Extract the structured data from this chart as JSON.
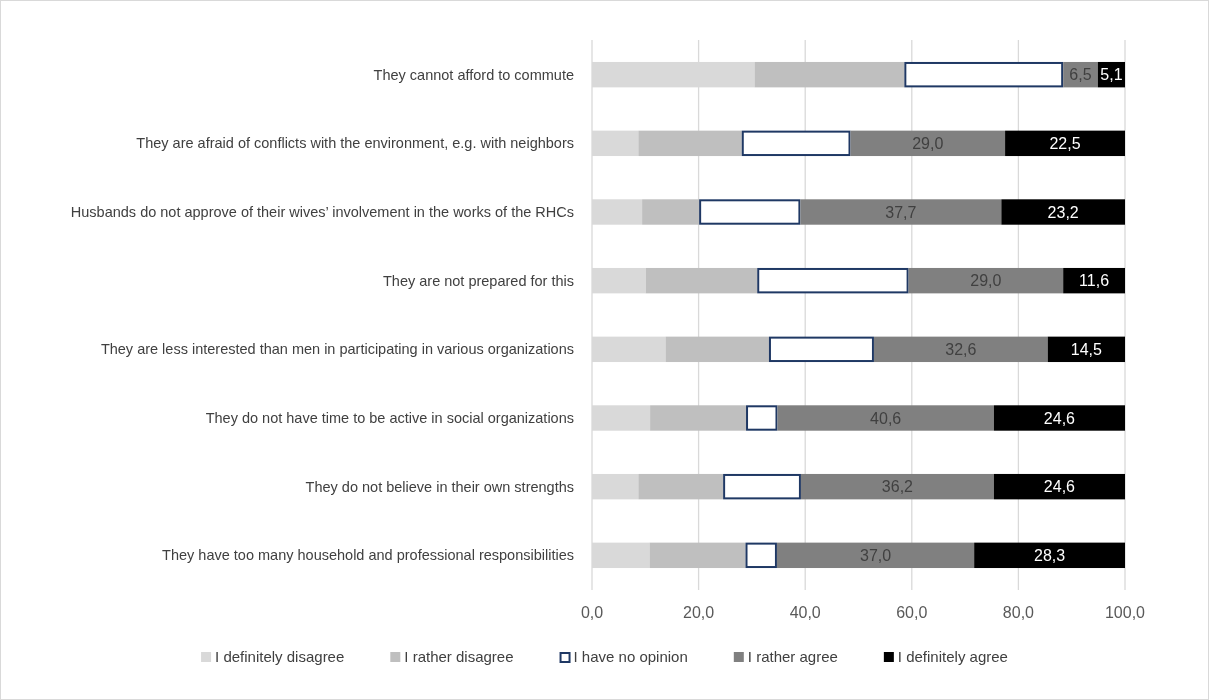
{
  "chart_data": {
    "type": "bar",
    "orientation": "horizontal",
    "stacked": true,
    "categories": [
      "They cannot afford to commute",
      "They are afraid of conflicts with the environment, e.g. with neighbors",
      "Husbands do not approve of their wives’ involvement in the works of the RHCs",
      "They are not prepared for this",
      "They are less interested than men in participating in various organizations",
      "They do not have time to be active in social organizations",
      "They do not believe in their own strengths",
      "They have too many household and professional responsibilities"
    ],
    "series": [
      {
        "name": "I definitely disagree",
        "color": "#d9d9d9",
        "values": [
          30.5,
          8.7,
          9.4,
          10.1,
          13.8,
          10.9,
          8.7,
          10.8
        ]
      },
      {
        "name": "I rather disagree",
        "color": "#bfbfbf",
        "values": [
          28.1,
          19.4,
          10.7,
          20.9,
          19.4,
          18.0,
          15.9,
          18.0
        ]
      },
      {
        "name": "I have no opinion",
        "color": "#ffffff",
        "values": [
          29.8,
          20.4,
          19.0,
          28.4,
          19.7,
          5.9,
          14.6,
          5.9
        ]
      },
      {
        "name": "I rather agree",
        "color": "#808080",
        "values": [
          6.5,
          29.0,
          37.7,
          29.0,
          32.6,
          40.6,
          36.2,
          37.0
        ],
        "value_labels": [
          "6,5",
          "29,0",
          "37,7",
          "29,0",
          "32,6",
          "40,6",
          "36,2",
          "37,0"
        ]
      },
      {
        "name": "I definitely agree",
        "color": "#000000",
        "values": [
          5.1,
          22.5,
          23.2,
          11.6,
          14.5,
          24.6,
          24.6,
          28.3
        ],
        "value_labels": [
          "5,1",
          "22,5",
          "23,2",
          "11,6",
          "14,5",
          "24,6",
          "24,6",
          "28,3"
        ]
      }
    ],
    "xlim": [
      0,
      100
    ],
    "xticks": [
      {
        "value": 0,
        "label": "0,0"
      },
      {
        "value": 20,
        "label": "20,0"
      },
      {
        "value": 40,
        "label": "40,0"
      },
      {
        "value": 60,
        "label": "60,0"
      },
      {
        "value": 80,
        "label": "80,0"
      },
      {
        "value": 100,
        "label": "100,0"
      }
    ],
    "grid": "x",
    "legend": "bottom"
  }
}
